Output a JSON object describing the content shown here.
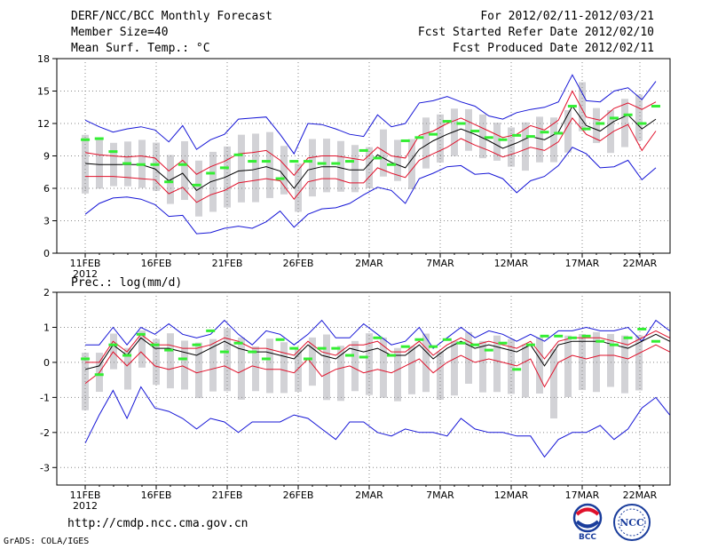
{
  "header": {
    "title": "DERF/NCC/BCC Monthly Forecast",
    "member_size": "Member Size=40",
    "variable": "Mean Surf. Temp.: °C",
    "period": "For 2012/02/11-2012/03/21",
    "started": "Fcst Started Refer Date 2012/02/10",
    "produced": "Fcst Produced Date 2012/02/11"
  },
  "footer": {
    "url": "http://cmdp.ncc.cma.gov.cn",
    "credit": "GrADS: COLA/IGES",
    "logo_left_text": "BCC",
    "logo_right_text": "NCC"
  },
  "colors": {
    "max_min": "#1515d6",
    "spread": "#e0102a",
    "mean": "#000000",
    "observed": "#33ee33",
    "boxes": "#d2d2d6",
    "grid": "#888888"
  },
  "chart_data": [
    {
      "type": "line",
      "title": "Mean Surf. Temp.: °C",
      "x_ticks": [
        "11FEB",
        "16FEB",
        "21FEB",
        "26FEB",
        "2MAR",
        "7MAR",
        "12MAR",
        "17MAR",
        "22MAR"
      ],
      "x_year": "2012",
      "ylim": [
        0,
        18
      ],
      "y_ticks": [
        "0",
        "3",
        "6",
        "9",
        "12",
        "15",
        "18"
      ],
      "days": 40,
      "series": [
        {
          "name": "max",
          "values": [
            12.3,
            11.7,
            11.2,
            11.5,
            11.7,
            11.4,
            10.3,
            11.8,
            9.6,
            10.5,
            11.0,
            12.4,
            12.5,
            12.6,
            11.0,
            9.2,
            12.0,
            11.9,
            11.5,
            11.0,
            10.8,
            12.8,
            11.7,
            12.0,
            13.9,
            14.1,
            14.5,
            14.0,
            13.6,
            12.7,
            12.4,
            13.0,
            13.3,
            13.5,
            14.0,
            16.5,
            14.1,
            14.0,
            15.0,
            15.3,
            14.2,
            15.9
          ]
        },
        {
          "name": "mean_plus",
          "values": [
            9.3,
            9.1,
            9.0,
            8.9,
            9.0,
            8.8,
            7.6,
            8.6,
            7.3,
            8.0,
            8.5,
            9.2,
            9.3,
            9.5,
            8.6,
            7.2,
            8.8,
            9.0,
            9.0,
            8.8,
            8.6,
            9.8,
            9.0,
            8.8,
            10.9,
            11.3,
            12.0,
            12.5,
            11.9,
            11.3,
            10.7,
            11.0,
            11.8,
            11.4,
            12.3,
            15.0,
            12.6,
            12.3,
            13.4,
            13.9,
            13.3,
            14.0
          ]
        },
        {
          "name": "mean",
          "values": [
            8.3,
            8.2,
            8.2,
            8.2,
            8.2,
            7.8,
            6.7,
            7.4,
            5.8,
            6.6,
            7.0,
            7.6,
            7.7,
            8.0,
            7.6,
            6.0,
            7.7,
            8.0,
            8.0,
            7.7,
            7.7,
            9.1,
            8.4,
            7.9,
            9.6,
            10.4,
            11.0,
            11.5,
            11.0,
            10.4,
            9.7,
            10.2,
            10.8,
            10.5,
            11.2,
            13.6,
            11.8,
            11.3,
            12.2,
            12.8,
            11.5,
            12.4
          ]
        },
        {
          "name": "mean_minus",
          "values": [
            7.1,
            7.1,
            7.1,
            7.0,
            6.9,
            6.8,
            5.5,
            6.1,
            4.7,
            5.4,
            5.8,
            6.5,
            6.7,
            6.9,
            6.7,
            5.0,
            6.6,
            6.9,
            6.9,
            6.5,
            6.5,
            7.9,
            7.4,
            7.0,
            8.6,
            9.2,
            9.8,
            10.6,
            10.0,
            9.5,
            8.9,
            9.3,
            9.8,
            9.5,
            10.3,
            12.5,
            11.0,
            10.4,
            11.3,
            11.9,
            9.5,
            11.3
          ]
        },
        {
          "name": "min",
          "values": [
            3.6,
            4.6,
            5.1,
            5.2,
            5.0,
            4.5,
            3.4,
            3.5,
            1.8,
            1.9,
            2.3,
            2.5,
            2.3,
            2.9,
            3.9,
            2.4,
            3.6,
            4.1,
            4.2,
            4.6,
            5.4,
            6.1,
            5.8,
            4.6,
            6.9,
            7.4,
            8.0,
            8.1,
            7.3,
            7.4,
            6.9,
            5.6,
            6.7,
            7.1,
            8.1,
            9.8,
            9.2,
            7.9,
            8.0,
            8.6,
            6.8,
            7.9
          ]
        },
        {
          "name": "observed",
          "values": [
            10.5,
            10.6,
            9.4,
            8.3,
            8.2,
            8.2,
            6.6,
            8.2,
            6.3,
            7.4,
            7.9,
            9.1,
            8.5,
            8.5,
            6.9,
            8.5,
            8.5,
            8.3,
            8.3,
            8.5,
            9.5,
            8.8,
            8.2,
            10.4,
            10.7,
            11.0,
            12.2,
            12.0,
            11.3,
            10.7,
            10.5,
            10.9,
            10.8,
            11.2,
            11.1,
            13.6,
            11.5,
            12.0,
            12.5,
            12.8,
            12.0,
            13.6
          ]
        }
      ]
    },
    {
      "type": "line",
      "title": "Prec.: log(mm/d)",
      "x_ticks": [
        "11FEB",
        "16FEB",
        "21FEB",
        "26FEB",
        "2MAR",
        "7MAR",
        "12MAR",
        "17MAR",
        "22MAR"
      ],
      "x_year": "2012",
      "ylim": [
        -3.5,
        2
      ],
      "y_ticks": [
        "-3",
        "-2",
        "-1",
        "0",
        "1",
        "2"
      ],
      "days": 40,
      "series": [
        {
          "name": "max",
          "values": [
            0.5,
            0.5,
            1.0,
            0.5,
            1.0,
            0.8,
            1.1,
            0.8,
            0.7,
            0.8,
            1.2,
            0.8,
            0.5,
            0.9,
            0.8,
            0.5,
            0.8,
            1.2,
            0.7,
            0.7,
            1.1,
            0.8,
            0.5,
            0.6,
            1.0,
            0.4,
            0.7,
            1.0,
            0.7,
            0.9,
            0.8,
            0.6,
            0.8,
            0.6,
            0.9,
            0.9,
            1.0,
            0.9,
            0.9,
            1.0,
            0.6,
            1.2,
            0.9
          ]
        },
        {
          "name": "mean_plus",
          "values": [
            0.0,
            0.0,
            0.6,
            0.3,
            0.8,
            0.5,
            0.5,
            0.4,
            0.4,
            0.5,
            0.7,
            0.6,
            0.4,
            0.4,
            0.3,
            0.2,
            0.6,
            0.3,
            0.2,
            0.5,
            0.5,
            0.6,
            0.3,
            0.3,
            0.6,
            0.2,
            0.5,
            0.7,
            0.5,
            0.6,
            0.5,
            0.4,
            0.6,
            0.1,
            0.6,
            0.7,
            0.7,
            0.7,
            0.6,
            0.5,
            0.7,
            0.9,
            0.7
          ]
        },
        {
          "name": "mean",
          "values": [
            -0.2,
            -0.1,
            0.5,
            0.2,
            0.7,
            0.4,
            0.4,
            0.3,
            0.2,
            0.4,
            0.6,
            0.4,
            0.3,
            0.3,
            0.2,
            0.1,
            0.5,
            0.2,
            0.1,
            0.4,
            0.3,
            0.4,
            0.2,
            0.2,
            0.5,
            0.1,
            0.4,
            0.6,
            0.4,
            0.5,
            0.4,
            0.3,
            0.5,
            -0.1,
            0.5,
            0.6,
            0.6,
            0.6,
            0.5,
            0.4,
            0.6,
            0.8,
            0.6
          ]
        },
        {
          "name": "mean_minus",
          "values": [
            -0.6,
            -0.3,
            0.3,
            -0.1,
            0.3,
            -0.1,
            -0.2,
            -0.1,
            -0.3,
            -0.2,
            -0.1,
            -0.3,
            -0.1,
            -0.2,
            -0.2,
            -0.3,
            0.1,
            -0.4,
            -0.2,
            -0.1,
            -0.3,
            -0.2,
            -0.3,
            -0.1,
            0.1,
            -0.3,
            0.0,
            0.2,
            0.0,
            0.1,
            0.0,
            -0.1,
            0.1,
            -0.7,
            0.0,
            0.2,
            0.1,
            0.2,
            0.2,
            0.1,
            0.3,
            0.5,
            0.3
          ]
        },
        {
          "name": "min",
          "values": [
            -2.3,
            -1.5,
            -0.8,
            -1.6,
            -0.7,
            -1.3,
            -1.4,
            -1.6,
            -1.9,
            -1.6,
            -1.7,
            -2.0,
            -1.7,
            -1.7,
            -1.7,
            -1.5,
            -1.6,
            -1.9,
            -2.2,
            -1.7,
            -1.7,
            -2.0,
            -2.1,
            -1.9,
            -2.0,
            -2.0,
            -2.1,
            -1.6,
            -1.9,
            -2.0,
            -2.0,
            -2.1,
            -2.1,
            -2.7,
            -2.2,
            -2.0,
            -2.0,
            -1.8,
            -2.2,
            -1.9,
            -1.3,
            -1.0,
            -1.5
          ]
        },
        {
          "name": "observed",
          "values": [
            0.1,
            -0.35,
            0.5,
            0.2,
            0.8,
            0.5,
            0.35,
            0.1,
            0.5,
            0.9,
            0.3,
            0.55,
            0.3,
            0.1,
            0.65,
            0.4,
            0.1,
            0.4,
            0.4,
            0.2,
            0.15,
            0.7,
            0.2,
            0.45,
            0.65,
            0.45,
            0.65,
            0.55,
            0.5,
            0.35,
            0.55,
            -0.2,
            0.5,
            0.75,
            0.75,
            0.7,
            0.75,
            0.6,
            0.5,
            0.7,
            0.95,
            0.6
          ]
        }
      ]
    }
  ]
}
